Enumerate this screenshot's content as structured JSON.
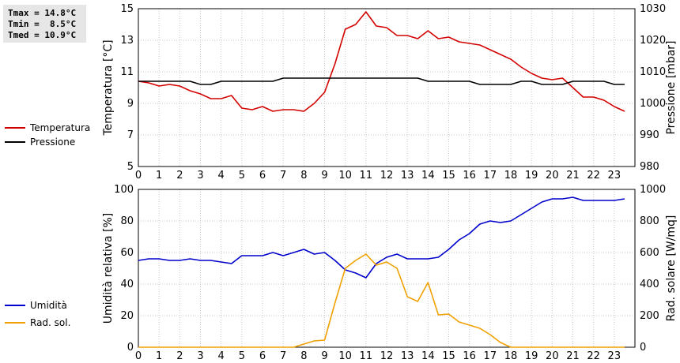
{
  "stats": {
    "lines": [
      "Tmax = 14.8°C",
      "Tmin =  8.5°C",
      "Tmed = 10.9°C"
    ],
    "background": "#e6e6e6"
  },
  "chart_data": [
    {
      "type": "line",
      "ylabel": "Temperatura [°C]",
      "y2label": "Pressione [mbar]",
      "x_ticks": [
        0,
        1,
        2,
        3,
        4,
        5,
        6,
        7,
        8,
        9,
        10,
        11,
        12,
        13,
        14,
        15,
        16,
        17,
        18,
        19,
        20,
        21,
        22,
        23
      ],
      "xlim": [
        0,
        24
      ],
      "ylim": [
        5,
        15
      ],
      "y_ticks": [
        5,
        7,
        9,
        11,
        13,
        15
      ],
      "y2lim": [
        980,
        1030
      ],
      "y2_ticks": [
        980,
        990,
        1000,
        1010,
        1020,
        1030
      ],
      "grid": true,
      "legend": "left",
      "x": [
        0,
        0.5,
        1,
        1.5,
        2,
        2.5,
        3,
        3.5,
        4,
        4.5,
        5,
        5.5,
        6,
        6.5,
        7,
        7.5,
        8,
        8.5,
        9,
        9.5,
        10,
        10.5,
        11,
        11.5,
        12,
        12.5,
        13,
        13.5,
        14,
        14.5,
        15,
        15.5,
        16,
        16.5,
        17,
        17.5,
        18,
        18.5,
        19,
        19.5,
        20,
        20.5,
        21,
        21.5,
        22,
        22.5,
        23,
        23.5
      ],
      "series": [
        {
          "name": "Temperatura",
          "color": "#d40000",
          "axis": "left",
          "values": [
            10.4,
            10.3,
            10.1,
            10.2,
            10.1,
            9.8,
            9.6,
            9.3,
            9.3,
            9.5,
            8.7,
            8.6,
            8.8,
            8.5,
            8.6,
            8.6,
            8.5,
            9.0,
            9.7,
            11.5,
            13.7,
            14.0,
            14.8,
            13.9,
            13.8,
            13.3,
            13.3,
            13.1,
            13.6,
            13.1,
            13.2,
            12.9,
            12.8,
            12.7,
            12.4,
            12.1,
            11.8,
            11.3,
            10.9,
            10.6,
            10.5,
            10.6,
            10.0,
            9.4,
            9.4,
            9.2,
            8.8,
            8.5
          ]
        },
        {
          "name": "Pressione",
          "color": "#000000",
          "axis": "right",
          "values": [
            1007,
            1007,
            1007,
            1007,
            1007,
            1007,
            1006,
            1006,
            1007,
            1007,
            1007,
            1007,
            1007,
            1007,
            1008,
            1008,
            1008,
            1008,
            1008,
            1008,
            1008,
            1008,
            1008,
            1008,
            1008,
            1008,
            1008,
            1008,
            1007,
            1007,
            1007,
            1007,
            1007,
            1006,
            1006,
            1006,
            1006,
            1007,
            1007,
            1006,
            1006,
            1006,
            1007,
            1007,
            1007,
            1007,
            1006,
            1006
          ]
        }
      ]
    },
    {
      "type": "line",
      "ylabel": "Umidità relativa [%]",
      "y2label": "Rad. solare [W/mq]",
      "x_ticks": [
        0,
        1,
        2,
        3,
        4,
        5,
        6,
        7,
        8,
        9,
        10,
        11,
        12,
        13,
        14,
        15,
        16,
        17,
        18,
        19,
        20,
        21,
        22,
        23
      ],
      "xlim": [
        0,
        24
      ],
      "ylim": [
        0,
        100
      ],
      "y_ticks": [
        0,
        20,
        40,
        60,
        80,
        100
      ],
      "y2lim": [
        0,
        1000
      ],
      "y2_ticks": [
        0,
        200,
        400,
        600,
        800,
        1000
      ],
      "grid": true,
      "legend": "left",
      "x": [
        0,
        0.5,
        1,
        1.5,
        2,
        2.5,
        3,
        3.5,
        4,
        4.5,
        5,
        5.5,
        6,
        6.5,
        7,
        7.5,
        8,
        8.5,
        9,
        9.5,
        10,
        10.5,
        11,
        11.5,
        12,
        12.5,
        13,
        13.5,
        14,
        14.5,
        15,
        15.5,
        16,
        16.5,
        17,
        17.5,
        18,
        18.5,
        19,
        19.5,
        20,
        20.5,
        21,
        21.5,
        22,
        22.5,
        23,
        23.5
      ],
      "series": [
        {
          "name": "Umidità",
          "color": "#0000cc",
          "axis": "left",
          "values": [
            55,
            56,
            56,
            55,
            55,
            56,
            55,
            55,
            54,
            53,
            58,
            58,
            58,
            60,
            58,
            60,
            62,
            59,
            60,
            55,
            49,
            47,
            44,
            53,
            57,
            59,
            56,
            56,
            56,
            57,
            62,
            68,
            72,
            78,
            80,
            79,
            80,
            84,
            88,
            92,
            94,
            94,
            95,
            93,
            93,
            93,
            93,
            94
          ]
        },
        {
          "name": "Rad. sol.",
          "color": "#f0a000",
          "axis": "right",
          "values": [
            0,
            0,
            0,
            0,
            0,
            0,
            0,
            0,
            0,
            0,
            0,
            0,
            0,
            0,
            0,
            0,
            20,
            40,
            45,
            280,
            500,
            550,
            590,
            520,
            540,
            500,
            320,
            290,
            410,
            205,
            210,
            160,
            140,
            120,
            80,
            30,
            0,
            0,
            0,
            0,
            0,
            0,
            0,
            0,
            0,
            0,
            0,
            0
          ]
        }
      ]
    }
  ]
}
